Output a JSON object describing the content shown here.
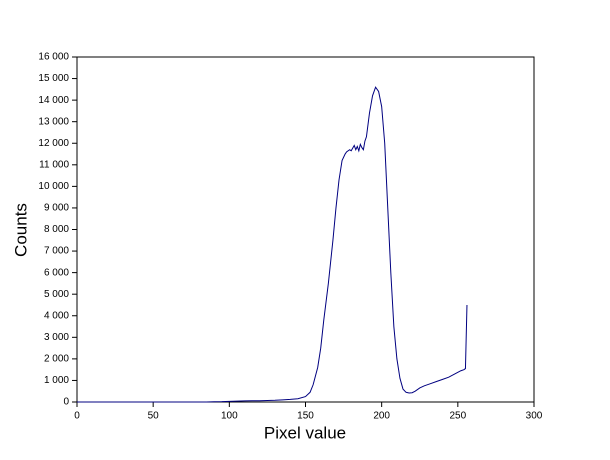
{
  "chart_data": {
    "type": "line",
    "xlabel": "Pixel value",
    "ylabel": "Counts",
    "color": "#000080",
    "x": [
      0,
      50,
      85,
      90,
      95,
      100,
      105,
      110,
      115,
      120,
      125,
      130,
      135,
      140,
      145,
      150,
      153,
      155,
      158,
      160,
      162,
      165,
      168,
      170,
      172,
      174,
      176,
      177,
      179,
      180,
      182,
      183,
      184,
      185,
      186,
      187,
      188,
      189,
      190,
      192,
      194,
      196,
      198,
      200,
      202,
      204,
      206,
      208,
      210,
      212,
      214,
      216,
      218,
      220,
      222,
      225,
      228,
      232,
      236,
      240,
      244,
      248,
      252,
      254,
      255,
      256
    ],
    "values": [
      0,
      0,
      0,
      10,
      15,
      30,
      40,
      50,
      55,
      60,
      70,
      80,
      100,
      120,
      150,
      250,
      450,
      800,
      1600,
      2500,
      3800,
      5500,
      7500,
      9000,
      10300,
      11200,
      11500,
      11600,
      11700,
      11650,
      11900,
      11700,
      11850,
      11650,
      11950,
      11800,
      11700,
      12100,
      12300,
      13400,
      14200,
      14600,
      14400,
      13700,
      12000,
      9000,
      6000,
      3500,
      2000,
      1100,
      600,
      450,
      420,
      430,
      500,
      650,
      750,
      850,
      950,
      1050,
      1150,
      1300,
      1450,
      1500,
      1550,
      4500
    ],
    "xlim": [
      0,
      300
    ],
    "xticks": [
      0,
      50,
      100,
      150,
      200,
      250,
      300
    ],
    "ylim": [
      0,
      16000
    ],
    "yticks": [
      0,
      {
        "value": 1000,
        "label": "1 000"
      },
      {
        "value": 2000,
        "label": "2 000"
      },
      {
        "value": 3000,
        "label": "3 000"
      },
      {
        "value": 4000,
        "label": "4 000"
      },
      {
        "value": 5000,
        "label": "5 000"
      },
      {
        "value": 6000,
        "label": "6 000"
      },
      {
        "value": 7000,
        "label": "7 000"
      },
      {
        "value": 8000,
        "label": "8 000"
      },
      {
        "value": 9000,
        "label": "9 000"
      },
      {
        "value": 10000,
        "label": "10 000"
      },
      {
        "value": 11000,
        "label": "11 000"
      },
      {
        "value": 12000,
        "label": "12 000"
      },
      {
        "value": 13000,
        "label": "13 000"
      },
      {
        "value": 14000,
        "label": "14 000"
      },
      {
        "value": 15000,
        "label": "15 000"
      },
      {
        "value": 16000,
        "label": "16 000"
      }
    ]
  }
}
